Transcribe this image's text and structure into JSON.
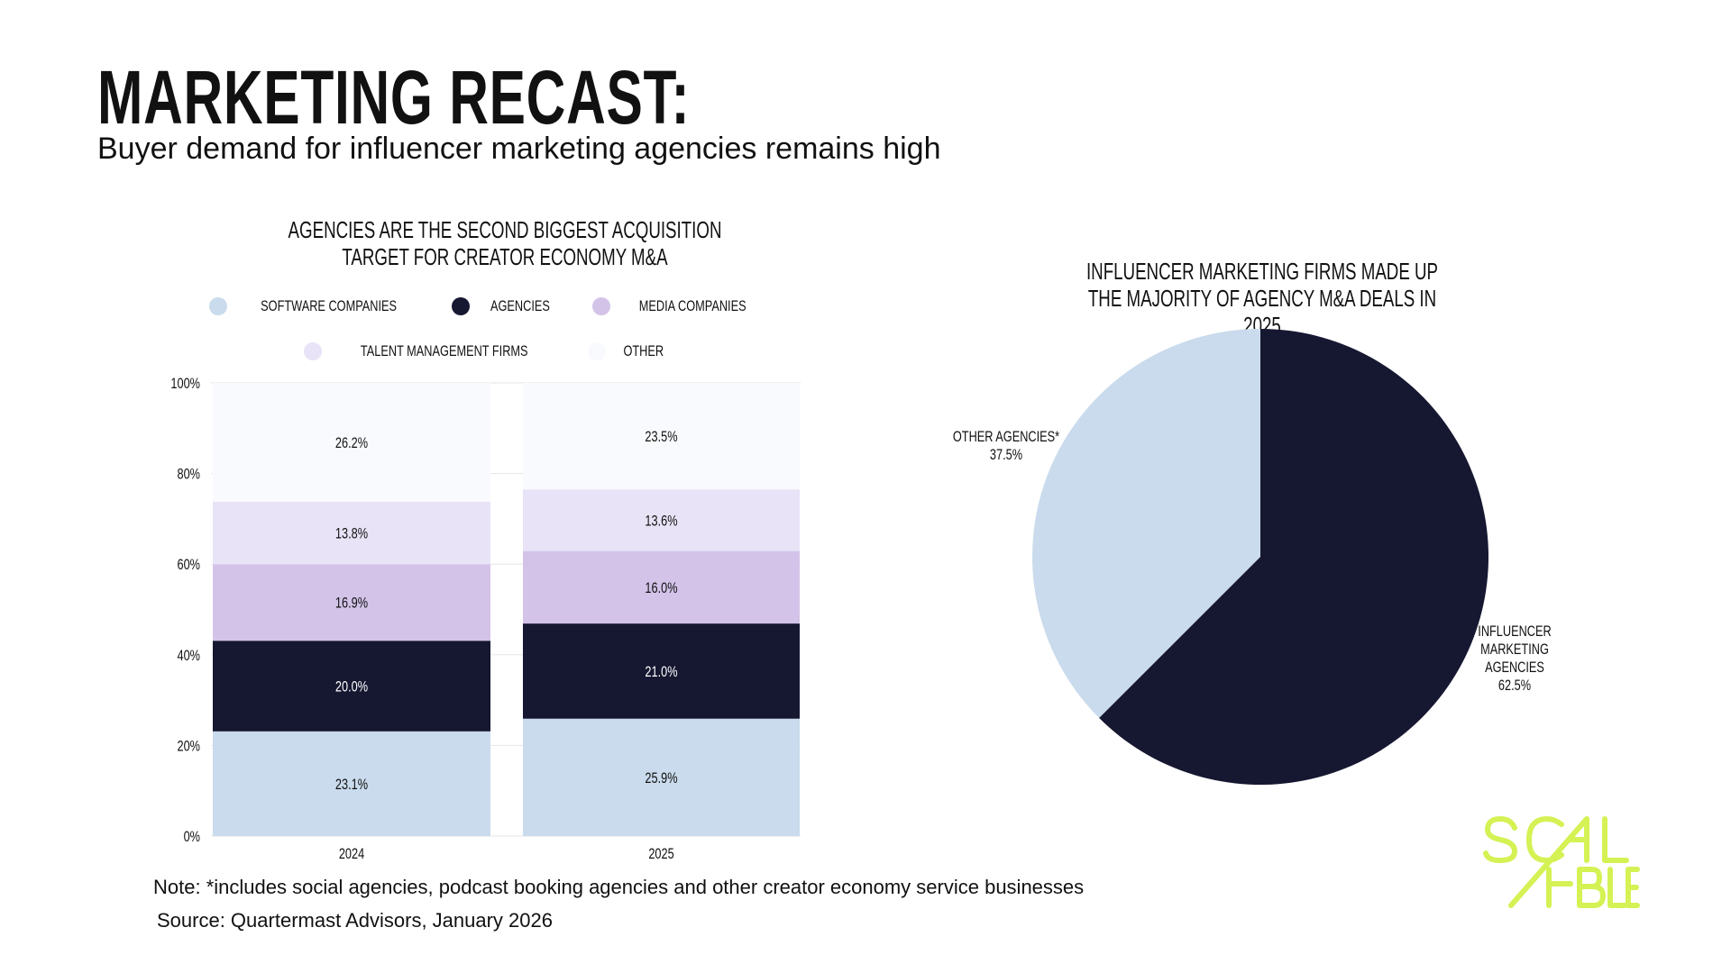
{
  "header": {
    "title": "MARKETING RECAST:",
    "subtitle": "Buyer demand for influencer marketing agencies remains high"
  },
  "chart_data": [
    {
      "type": "bar",
      "stacked": true,
      "title": "AGENCIES ARE THE SECOND BIGGEST ACQUISITION TARGET FOR CREATOR ECONOMY M&A",
      "categories": [
        "2024",
        "2025"
      ],
      "ylim": [
        0,
        100
      ],
      "yticks": [
        "0%",
        "20%",
        "40%",
        "60%",
        "80%",
        "100%"
      ],
      "legend": "top",
      "series": [
        {
          "name": "SOFTWARE COMPANIES",
          "color": "#c9dbec",
          "label_color": "#111111",
          "values": [
            23.1,
            25.9
          ]
        },
        {
          "name": "AGENCIES",
          "color": "#161731",
          "label_color": "#ffffff",
          "values": [
            20.0,
            21.0
          ]
        },
        {
          "name": "MEDIA COMPANIES",
          "color": "#d3c3e9",
          "label_color": "#111111",
          "values": [
            16.9,
            16.0
          ]
        },
        {
          "name": "TALENT MANAGEMENT FIRMS",
          "color": "#e8e3f6",
          "label_color": "#111111",
          "values": [
            13.8,
            13.6
          ]
        },
        {
          "name": "OTHER",
          "color": "#f9fafd",
          "label_color": "#111111",
          "values": [
            26.2,
            23.5
          ]
        }
      ]
    },
    {
      "type": "pie",
      "title": "INFLUENCER MARKETING FIRMS MADE UP THE MAJORITY OF AGENCY M&A DEALS IN 2025",
      "slices": [
        {
          "label": [
            "INFLUENCER",
            "MARKETING",
            "AGENCIES"
          ],
          "value": 62.5,
          "value_label": "62.5%",
          "color": "#161731"
        },
        {
          "label": [
            "OTHER AGENCIES*"
          ],
          "value": 37.5,
          "value_label": "37.5%",
          "color": "#c9dbec"
        }
      ]
    }
  ],
  "footer": {
    "note": "Note: *includes social agencies, podcast booking agencies and other creator economy service businesses",
    "source": "Source: Quartermast Advisors, January 2026"
  },
  "logo": {
    "text": "SCALABLE",
    "color": "#d4f254"
  }
}
